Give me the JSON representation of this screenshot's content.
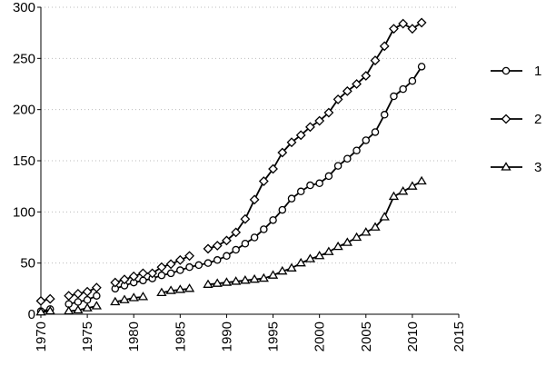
{
  "chart_data": {
    "type": "line",
    "x": [
      1970,
      1971,
      1972,
      1973,
      1974,
      1975,
      1976,
      1977,
      1978,
      1979,
      1980,
      1981,
      1982,
      1983,
      1984,
      1985,
      1986,
      1987,
      1988,
      1989,
      1990,
      1991,
      1992,
      1993,
      1994,
      1995,
      1996,
      1997,
      1998,
      1999,
      2000,
      2001,
      2002,
      2003,
      2004,
      2005,
      2006,
      2007,
      2008,
      2009,
      2010,
      2011
    ],
    "series": [
      {
        "name": "1",
        "color": "#000000",
        "marker": "circle",
        "values": [
          3,
          5,
          null,
          10,
          12,
          14,
          18,
          null,
          25,
          28,
          31,
          33,
          35,
          38,
          40,
          43,
          46,
          48,
          50,
          53,
          57,
          63,
          69,
          75,
          83,
          92,
          102,
          113,
          120,
          126,
          128,
          135,
          145,
          152,
          160,
          170,
          178,
          195,
          213,
          220,
          228,
          242
        ]
      },
      {
        "name": "2",
        "color": "#000000",
        "marker": "diamond",
        "values": [
          13,
          15,
          null,
          18,
          20,
          22,
          26,
          null,
          31,
          34,
          37,
          40,
          40,
          46,
          49,
          53,
          57,
          null,
          64,
          67,
          72,
          80,
          93,
          112,
          130,
          142,
          158,
          168,
          175,
          183,
          189,
          197,
          210,
          218,
          225,
          233,
          248,
          262,
          279,
          284,
          279,
          285
        ]
      },
      {
        "name": "3",
        "color": "#000000",
        "marker": "triangle",
        "values": [
          2,
          3,
          null,
          3,
          4,
          6,
          8,
          null,
          12,
          14,
          16,
          17,
          null,
          21,
          23,
          24,
          25,
          null,
          29,
          30,
          31,
          32,
          33,
          34,
          35,
          38,
          42,
          45,
          50,
          54,
          57,
          61,
          66,
          70,
          75,
          80,
          85,
          95,
          115,
          120,
          125,
          130
        ]
      }
    ],
    "xlim": [
      1970,
      2015
    ],
    "xticks": [
      1970,
      1975,
      1980,
      1985,
      1990,
      1995,
      2000,
      2005,
      2010,
      2015
    ],
    "ylim": [
      0,
      300
    ],
    "yticks": [
      0,
      50,
      100,
      150,
      200,
      250,
      300
    ],
    "grid": true,
    "legend": "right"
  }
}
